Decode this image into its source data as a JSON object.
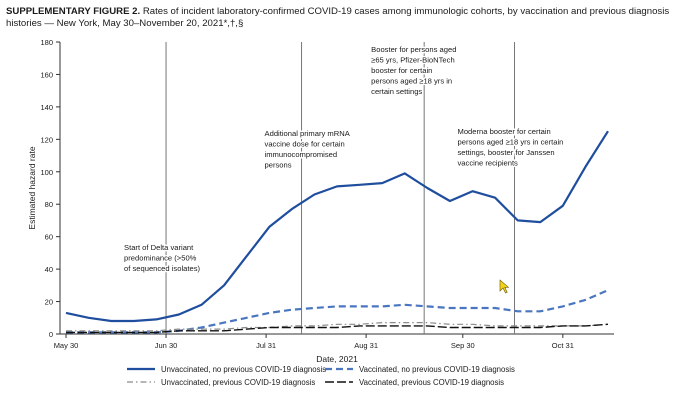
{
  "figure": {
    "label": "SUPPLEMENTARY FIGURE 2.",
    "caption": "Rates of incident laboratory-confirmed COVID-19 cases among immunologic cohorts, by vaccination and previous diagnosis histories — New York, May 30–November 20, 2021*,†,§"
  },
  "chart_data": {
    "type": "line",
    "xlabel": "Date, 2021",
    "ylabel": "Estimated hazard rate",
    "ylim": [
      0,
      180
    ],
    "yticks": [
      0,
      20,
      40,
      60,
      80,
      100,
      120,
      140,
      160,
      180
    ],
    "xticks": [
      {
        "label": "May 30",
        "week": 0
      },
      {
        "label": "Jun 30",
        "week": 4.43
      },
      {
        "label": "Jul 31",
        "week": 8.86
      },
      {
        "label": "Aug 31",
        "week": 13.29
      },
      {
        "label": "Sep 30",
        "week": 17.57
      },
      {
        "label": "Oct 31",
        "week": 22
      }
    ],
    "x_weeks": [
      0,
      1,
      2,
      3,
      4,
      5,
      6,
      7,
      8,
      9,
      10,
      11,
      12,
      13,
      14,
      15,
      16,
      17,
      18,
      19,
      20,
      21,
      22,
      23,
      24
    ],
    "series": [
      {
        "name": "Unvaccinated, no previous COVID-19 diagnosis",
        "style": "solid",
        "color": "#1f4e9e",
        "values": [
          13,
          10,
          8,
          8,
          9,
          12,
          18,
          30,
          48,
          66,
          77,
          86,
          91,
          92,
          93,
          99,
          90,
          82,
          88,
          84,
          70,
          69,
          79,
          103,
          125
        ]
      },
      {
        "name": "Vaccinated, no previous COVID-19 diagnosis",
        "style": "dash",
        "color": "#4a76c0",
        "values": [
          1,
          1,
          1,
          1,
          1,
          2,
          4,
          7,
          10,
          13,
          15,
          16,
          17,
          17,
          17,
          18,
          17,
          16,
          16,
          16,
          14,
          14,
          17,
          21,
          27
        ]
      },
      {
        "name": "Unvaccinated, previous COVID-19 diagnosis",
        "style": "dashdot",
        "color": "#8a8a8a",
        "values": [
          2,
          2,
          2,
          2,
          2,
          3,
          3,
          3,
          4,
          4,
          5,
          5,
          6,
          6,
          7,
          7,
          7,
          6,
          6,
          5,
          5,
          5,
          5,
          5,
          6
        ]
      },
      {
        "name": "Vaccinated, previous COVID-19 diagnosis",
        "style": "longdash",
        "color": "#111111",
        "values": [
          1,
          1,
          1,
          1,
          1,
          2,
          2,
          2,
          3,
          4,
          4,
          4,
          4,
          5,
          5,
          5,
          5,
          4,
          4,
          4,
          4,
          4,
          5,
          5,
          6
        ]
      }
    ],
    "events": [
      {
        "week": 4.43,
        "text": [
          "Start of Delta variant",
          "predominance (>50%",
          "of sequenced isolates)"
        ]
      },
      {
        "week": 10.43,
        "text": [
          "Additional primary mRNA",
          "vaccine dose for certain",
          "immunocompromised",
          "persons"
        ]
      },
      {
        "week": 15.86,
        "text": [
          "Booster for persons aged",
          "≥65 yrs, Pfizer-BioNTech",
          "booster for certain",
          "persons aged ≥18 yrs in",
          "certain settings"
        ]
      },
      {
        "week": 19.86,
        "text": [
          "Moderna booster for certain",
          "persons aged ≥18 yrs in certain",
          "settings, booster for Janssen",
          "vaccine recipients"
        ]
      }
    ]
  }
}
